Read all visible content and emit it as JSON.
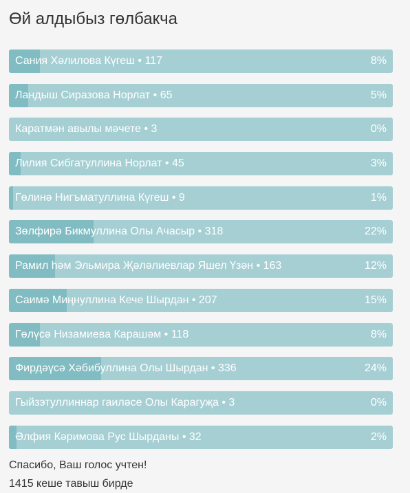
{
  "poll": {
    "title": "Өй алдыбыз гөлбакча",
    "options": [
      {
        "label": "Сания Хәлилова Күгеш • 117",
        "percent": 8,
        "percent_label": "8%"
      },
      {
        "label": "Ландыш Сиразова Норлат • 65",
        "percent": 5,
        "percent_label": "5%"
      },
      {
        "label": "Каратмән авылы мәчете • 3",
        "percent": 0,
        "percent_label": "0%"
      },
      {
        "label": "Лилия Сибгатуллина Норлат • 45",
        "percent": 3,
        "percent_label": "3%"
      },
      {
        "label": "Гөлинә Нигъматуллина Күгеш • 9",
        "percent": 1,
        "percent_label": "1%"
      },
      {
        "label": "Зөлфирә Бикмуллина Олы Ачасыр • 318",
        "percent": 22,
        "percent_label": "22%"
      },
      {
        "label": "Рамил һәм Эльмира Җәләлиевлар Яшел Үзән • 163",
        "percent": 12,
        "percent_label": "12%"
      },
      {
        "label": "Саимә Миңнуллина Кече Шырдан • 207",
        "percent": 15,
        "percent_label": "15%"
      },
      {
        "label": "Гөлүсә Низамиева Карашәм • 118",
        "percent": 8,
        "percent_label": "8%"
      },
      {
        "label": "Фирдәүсә Хәбибуллина Олы Шырдан • 336",
        "percent": 24,
        "percent_label": "24%"
      },
      {
        "label": "Гыйзэтуллиннар гаиләсе Олы Карагуҗа • 3",
        "percent": 0,
        "percent_label": "0%"
      },
      {
        "label": "Әлфия Кәримова Рус Шырданы • 32",
        "percent": 2,
        "percent_label": "2%"
      }
    ],
    "thanks": "Спасибо, Ваш голос учтен!",
    "total": "1415 кеше тавыш бирде"
  }
}
